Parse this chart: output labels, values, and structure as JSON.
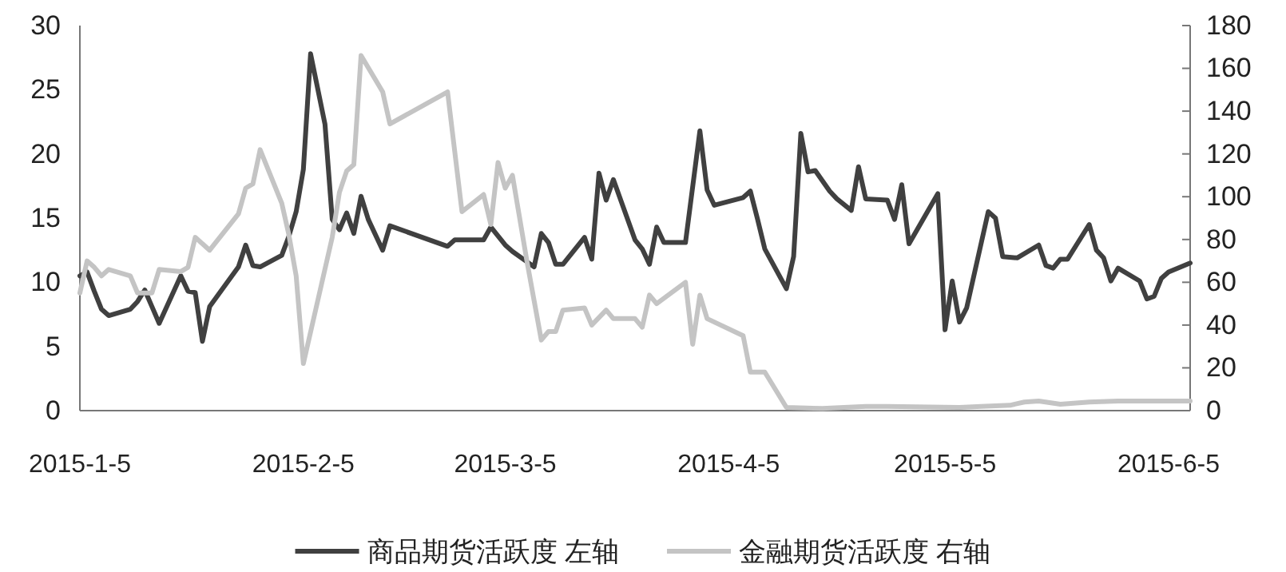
{
  "chart_data": {
    "type": "line",
    "x": [
      "2015-01-05",
      "2015-01-06",
      "2015-01-07",
      "2015-01-08",
      "2015-01-09",
      "2015-01-12",
      "2015-01-13",
      "2015-01-14",
      "2015-01-15",
      "2015-01-16",
      "2015-01-19",
      "2015-01-20",
      "2015-01-21",
      "2015-01-22",
      "2015-01-23",
      "2015-01-27",
      "2015-01-28",
      "2015-01-29",
      "2015-01-30",
      "2015-02-02",
      "2015-02-03",
      "2015-02-04",
      "2015-02-05",
      "2015-02-06",
      "2015-02-08",
      "2015-02-09",
      "2015-02-10",
      "2015-02-11",
      "2015-02-12",
      "2015-02-13",
      "2015-02-14",
      "2015-02-16",
      "2015-02-17",
      "2015-02-25",
      "2015-02-26",
      "2015-03-02",
      "2015-03-03",
      "2015-03-04",
      "2015-03-05",
      "2015-03-06",
      "2015-03-08",
      "2015-03-09",
      "2015-03-10",
      "2015-03-11",
      "2015-03-12",
      "2015-03-13",
      "2015-03-16",
      "2015-03-17",
      "2015-03-18",
      "2015-03-19",
      "2015-03-20",
      "2015-03-23",
      "2015-03-24",
      "2015-03-25",
      "2015-03-26",
      "2015-03-27",
      "2015-03-30",
      "2015-04-01",
      "2015-04-02",
      "2015-04-03",
      "2015-04-07",
      "2015-04-08",
      "2015-04-09",
      "2015-04-10",
      "2015-04-13",
      "2015-04-14",
      "2015-04-15",
      "2015-04-16",
      "2015-04-17",
      "2015-04-19",
      "2015-04-20",
      "2015-04-22",
      "2015-04-23",
      "2015-04-24",
      "2015-04-27",
      "2015-04-28",
      "2015-04-29",
      "2015-04-30",
      "2015-05-04",
      "2015-05-05",
      "2015-05-06",
      "2015-05-07",
      "2015-05-08",
      "2015-05-11",
      "2015-05-12",
      "2015-05-13",
      "2015-05-15",
      "2015-05-18",
      "2015-05-19",
      "2015-05-20",
      "2015-05-21",
      "2015-05-22",
      "2015-05-25",
      "2015-05-26",
      "2015-05-27",
      "2015-05-28",
      "2015-05-29",
      "2015-06-01",
      "2015-06-02",
      "2015-06-03",
      "2015-06-04",
      "2015-06-05",
      "2015-06-08"
    ],
    "series": [
      {
        "name": "商品期货活跃度 左轴",
        "color": "#404040",
        "values": [
          10.5,
          10.8,
          9.3,
          7.9,
          7.4,
          7.9,
          8.5,
          9.4,
          8.1,
          6.8,
          10.5,
          9.3,
          9.2,
          5.4,
          8.1,
          11.2,
          12.9,
          11.3,
          11.2,
          12.1,
          13.6,
          15.5,
          18.8,
          27.8,
          22.3,
          14.9,
          14.1,
          15.4,
          13.8,
          16.7,
          14.9,
          12.5,
          14.4,
          12.8,
          13.3,
          13.3,
          14.3,
          13.6,
          12.9,
          12.4,
          11.6,
          11.2,
          13.8,
          13.1,
          11.4,
          11.4,
          13.5,
          11.8,
          18.5,
          16.4,
          18.0,
          13.3,
          12.6,
          11.4,
          14.3,
          13.1,
          13.1,
          21.8,
          17.2,
          16.0,
          16.6,
          17.1,
          14.9,
          12.6,
          9.5,
          12.0,
          21.6,
          18.6,
          18.7,
          17.1,
          16.5,
          15.6,
          19.0,
          16.5,
          16.4,
          14.9,
          17.6,
          13.0,
          16.9,
          6.3,
          10.1,
          6.9,
          8.0,
          15.5,
          15.0,
          12.0,
          11.9,
          12.9,
          11.3,
          11.1,
          11.8,
          11.8,
          14.5,
          12.5,
          11.9,
          10.1,
          11.1,
          10.1,
          8.7,
          8.9,
          10.3,
          10.8,
          11.5
        ]
      },
      {
        "name": "金融期货活跃度 右轴",
        "color": "#c4c4c4",
        "axis": "y2",
        "x": [
          "2015-01-05",
          "2015-01-06",
          "2015-01-07",
          "2015-01-08",
          "2015-01-09",
          "2015-01-12",
          "2015-01-13",
          "2015-01-15",
          "2015-01-16",
          "2015-01-19",
          "2015-01-20",
          "2015-01-21",
          "2015-01-23",
          "2015-01-27",
          "2015-01-28",
          "2015-01-29",
          "2015-01-30",
          "2015-02-02",
          "2015-02-03",
          "2015-02-04",
          "2015-02-05",
          "2015-02-09",
          "2015-02-10",
          "2015-02-11",
          "2015-02-12",
          "2015-02-13",
          "2015-02-16",
          "2015-02-17",
          "2015-02-25",
          "2015-02-27",
          "2015-03-02",
          "2015-03-03",
          "2015-03-04",
          "2015-03-05",
          "2015-03-06",
          "2015-03-08",
          "2015-03-10",
          "2015-03-11",
          "2015-03-12",
          "2015-03-13",
          "2015-03-16",
          "2015-03-17",
          "2015-03-19",
          "2015-03-20",
          "2015-03-23",
          "2015-03-24",
          "2015-03-25",
          "2015-03-26",
          "2015-03-30",
          "2015-03-31",
          "2015-04-01",
          "2015-04-02",
          "2015-04-07",
          "2015-04-08",
          "2015-04-10",
          "2015-04-13",
          "2015-04-18",
          "2015-04-24",
          "2015-04-27",
          "2015-05-07",
          "2015-05-10",
          "2015-05-14",
          "2015-05-16",
          "2015-05-18",
          "2015-05-21",
          "2015-05-25",
          "2015-05-29",
          "2015-06-03",
          "2015-06-08"
        ],
        "values": [
          55,
          70,
          67,
          63,
          66,
          63,
          55,
          55,
          66,
          65,
          67,
          81,
          75,
          92,
          104,
          106,
          122,
          97,
          82,
          63,
          22,
          81,
          102,
          112,
          115,
          166,
          149,
          134,
          149,
          93,
          101,
          87,
          116,
          104,
          110,
          70,
          33,
          37,
          37,
          47,
          48,
          40,
          47,
          43,
          43,
          39,
          54,
          50,
          60,
          31,
          54,
          43,
          35,
          18,
          18,
          1.5,
          1,
          2,
          2,
          1.5,
          2,
          2.5,
          4,
          4.5,
          3,
          4,
          4.5,
          4.5,
          4.5
        ]
      }
    ],
    "xlim": [
      "2015-01-05",
      "2015-06-08"
    ],
    "xticks": [
      {
        "value": "2015-01-05",
        "label": "2015-1-5"
      },
      {
        "value": "2015-02-05",
        "label": "2015-2-5"
      },
      {
        "value": "2015-03-05",
        "label": "2015-3-5"
      },
      {
        "value": "2015-04-05",
        "label": "2015-4-5"
      },
      {
        "value": "2015-05-05",
        "label": "2015-5-5"
      },
      {
        "value": "2015-06-05",
        "label": "2015-6-5"
      }
    ],
    "ylim": [
      0,
      30
    ],
    "yticks": [
      0,
      5,
      10,
      15,
      20,
      25,
      30
    ],
    "y2lim": [
      0,
      180
    ],
    "y2ticks": [
      0,
      20,
      40,
      60,
      80,
      100,
      120,
      140,
      160,
      180
    ],
    "legend": "bottom",
    "grid": false
  }
}
